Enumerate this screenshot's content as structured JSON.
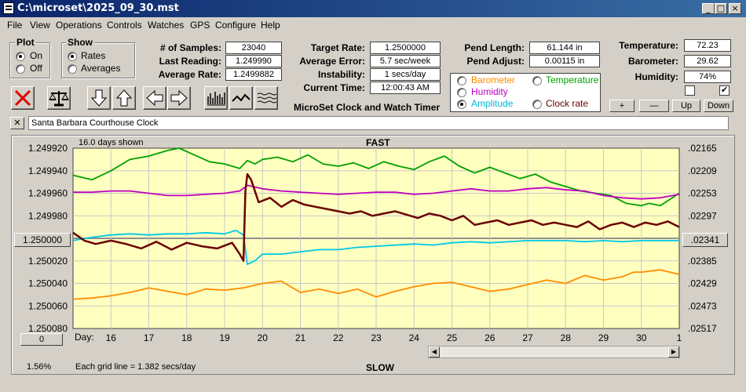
{
  "window": {
    "title": "C:\\microset\\2025_09_30.mst"
  },
  "menu": [
    "File",
    "View",
    "Operations",
    "Controls",
    "Watches",
    "GPS",
    "Configure",
    "Help"
  ],
  "plot_group": {
    "title": "Plot",
    "on": "On",
    "off": "Off",
    "selected": "On"
  },
  "show_group": {
    "title": "Show",
    "rates": "Rates",
    "averages": "Averages",
    "selected": "Rates"
  },
  "stats": {
    "samples_label": "# of Samples:",
    "samples": "23040",
    "last_label": "Last Reading:",
    "last": "1.249990",
    "avg_rate_label": "Average Rate:",
    "avg_rate": "1.2499882",
    "target_label": "Target Rate:",
    "target": "1.2500000",
    "avg_error_label": "Average Error:",
    "avg_error": "5.7 sec/week",
    "instability_label": "Instability:",
    "instability": "1 secs/day",
    "time_label": "Current Time:",
    "time": "12:00:43 AM",
    "pend_length_label": "Pend Length:",
    "pend_length": "61.144 in",
    "pend_adjust_label": "Pend Adjust:",
    "pend_adjust": "0.00115 in",
    "temperature_label": "Temperature:",
    "temperature": "72.23",
    "barometer_label": "Barometer:",
    "barometer": "29.62",
    "humidity_label": "Humidity:",
    "humidity": "74%"
  },
  "product_title": "MicroSet Clock and Watch Timer",
  "sensor_radio": {
    "barometer": "Barometer",
    "temperature": "Temperature",
    "humidity": "Humidity",
    "amplitude": "Amplitude",
    "clock_rate": "Clock rate",
    "selected": "Amplitude"
  },
  "colors": {
    "barometer": "#ff8c00",
    "temperature": "#00a000",
    "humidity": "#c000c0",
    "amplitude": "#00c8e6",
    "rate": "#6b0000",
    "plot_bg": "#ffffc0"
  },
  "adjust_buttons": {
    "plus": "+",
    "minus": "—",
    "up": "Up",
    "down": "Down"
  },
  "checkboxes": {
    "left_checked": false,
    "right_checked": true
  },
  "toolbar_icons": [
    "stop-icon",
    "balance-icon",
    "arrow-down-icon",
    "arrow-up-icon",
    "arrow-left-icon",
    "arrow-right-icon",
    "bar-graph-icon",
    "line-graph-icon",
    "wave-graph-icon"
  ],
  "clock_name": "Santa Barbara Courthouse Clock",
  "close_label": "✕",
  "chart_data": {
    "type": "line",
    "top_label": "FAST",
    "bottom_label": "SLOW",
    "days_shown": "16.0 days shown",
    "grid_note": "Each grid line = 1.382 secs/day",
    "zoom": "1.56%",
    "day_label": "Day:",
    "center_value": "1.250000",
    "offset_button": "0",
    "right_value": ".02341",
    "x_ticks": [
      "16",
      "17",
      "18",
      "19",
      "20",
      "21",
      "22",
      "23",
      "24",
      "25",
      "26",
      "27",
      "28",
      "29",
      "30",
      "1"
    ],
    "x_range": [
      15.0,
      31.0
    ],
    "y_ticks_left": [
      "1.249920",
      "1.249940",
      "1.249960",
      "1.249980",
      "1.250000",
      "1.250020",
      "1.250040",
      "1.250060",
      "1.250080"
    ],
    "y_ticks_right": [
      ".02165",
      ".02209",
      ".02253",
      ".02297",
      ".02341",
      ".02385",
      ".02429",
      ".02473",
      ".02517"
    ],
    "y_range": [
      1.24992,
      1.25008
    ],
    "series": [
      {
        "name": "Temperature",
        "color": "#00a000",
        "x": [
          15.0,
          15.5,
          16.0,
          16.5,
          17.0,
          17.5,
          17.8,
          18.2,
          18.6,
          19.0,
          19.4,
          19.6,
          19.8,
          20.0,
          20.4,
          20.8,
          21.2,
          21.6,
          22.0,
          22.4,
          22.8,
          23.2,
          23.6,
          24.0,
          24.4,
          24.8,
          25.2,
          25.6,
          26.0,
          26.4,
          26.8,
          27.2,
          27.6,
          28.0,
          28.4,
          28.8,
          29.2,
          29.6,
          29.8,
          30.0,
          30.2,
          30.5,
          31.0
        ],
        "y": [
          1.249944,
          1.249948,
          1.24994,
          1.24993,
          1.249927,
          1.249922,
          1.24992,
          1.249926,
          1.249932,
          1.249934,
          1.249938,
          1.249931,
          1.249934,
          1.24993,
          1.249928,
          1.249932,
          1.249926,
          1.249934,
          1.249936,
          1.249933,
          1.249938,
          1.249932,
          1.249936,
          1.249939,
          1.249932,
          1.249927,
          1.249936,
          1.249942,
          1.249937,
          1.249942,
          1.249947,
          1.249943,
          1.24995,
          1.249954,
          1.249958,
          1.24996,
          1.249962,
          1.249969,
          1.24997,
          1.249971,
          1.249969,
          1.249971,
          1.24996
        ]
      },
      {
        "name": "Humidity",
        "color": "#c000c0",
        "x": [
          15.0,
          15.5,
          16.0,
          16.5,
          17.0,
          17.5,
          18.0,
          18.5,
          19.0,
          19.4,
          19.6,
          20.0,
          20.5,
          21.0,
          21.5,
          22.0,
          22.5,
          23.0,
          23.5,
          24.0,
          24.5,
          25.0,
          25.5,
          26.0,
          26.5,
          27.0,
          27.5,
          28.0,
          28.5,
          29.0,
          29.5,
          30.0,
          30.5,
          31.0
        ],
        "y": [
          1.249959,
          1.249959,
          1.249958,
          1.249958,
          1.24996,
          1.249962,
          1.249962,
          1.249961,
          1.24996,
          1.249958,
          1.249953,
          1.249956,
          1.249958,
          1.249959,
          1.24996,
          1.249961,
          1.24996,
          1.249959,
          1.249959,
          1.249961,
          1.24996,
          1.249958,
          1.249956,
          1.249958,
          1.249958,
          1.249956,
          1.249955,
          1.249957,
          1.249958,
          1.249962,
          1.249964,
          1.249965,
          1.249964,
          1.249961
        ]
      },
      {
        "name": "Amplitude",
        "color": "#00c8e6",
        "x": [
          15.0,
          15.5,
          16.0,
          16.5,
          17.0,
          17.5,
          18.0,
          18.5,
          19.0,
          19.3,
          19.5,
          19.6,
          19.8,
          20.0,
          20.5,
          21.0,
          21.5,
          22.0,
          22.5,
          23.0,
          23.5,
          24.0,
          24.5,
          25.0,
          25.5,
          26.0,
          26.5,
          27.0,
          27.5,
          28.0,
          28.5,
          29.0,
          29.5,
          30.0,
          30.5,
          31.0
        ],
        "y": [
          1.250002,
          1.249999,
          1.249997,
          1.249996,
          1.249997,
          1.249996,
          1.249996,
          1.249995,
          1.249996,
          1.249993,
          1.249997,
          1.250023,
          1.25002,
          1.250014,
          1.250014,
          1.250012,
          1.25001,
          1.25001,
          1.250008,
          1.250007,
          1.250006,
          1.250005,
          1.250006,
          1.250004,
          1.250003,
          1.250004,
          1.250003,
          1.250002,
          1.250002,
          1.250002,
          1.250003,
          1.250002,
          1.250003,
          1.250002,
          1.250002,
          1.250002
        ]
      },
      {
        "name": "Barometer",
        "color": "#ff8c00",
        "x": [
          15.0,
          15.5,
          16.0,
          16.5,
          17.0,
          17.5,
          18.0,
          18.5,
          19.0,
          19.5,
          20.0,
          20.5,
          21.0,
          21.5,
          22.0,
          22.5,
          23.0,
          23.5,
          24.0,
          24.5,
          25.0,
          25.5,
          26.0,
          26.5,
          27.0,
          27.5,
          28.0,
          28.5,
          29.0,
          29.5,
          29.8,
          30.0,
          30.5,
          31.0
        ],
        "y": [
          1.250054,
          1.250053,
          1.250051,
          1.250048,
          1.250044,
          1.250047,
          1.25005,
          1.250045,
          1.250046,
          1.250044,
          1.25004,
          1.250038,
          1.250048,
          1.250045,
          1.250049,
          1.250045,
          1.250052,
          1.250047,
          1.250043,
          1.25004,
          1.250039,
          1.250043,
          1.250047,
          1.250045,
          1.250041,
          1.250037,
          1.25004,
          1.250033,
          1.250037,
          1.250034,
          1.25003,
          1.25003,
          1.250028,
          1.250032
        ]
      },
      {
        "name": "Clock rate",
        "color": "#6b0000",
        "x": [
          15.0,
          15.3,
          15.6,
          16.0,
          16.4,
          16.8,
          17.2,
          17.6,
          18.0,
          18.4,
          18.8,
          19.2,
          19.4,
          19.5,
          19.55,
          19.6,
          19.7,
          19.9,
          20.2,
          20.5,
          20.8,
          21.1,
          21.4,
          21.7,
          22.0,
          22.3,
          22.6,
          22.9,
          23.2,
          23.5,
          23.8,
          24.1,
          24.4,
          24.7,
          25.0,
          25.3,
          25.6,
          25.9,
          26.2,
          26.5,
          26.8,
          27.1,
          27.4,
          27.7,
          28.0,
          28.3,
          28.6,
          28.9,
          29.2,
          29.5,
          29.8,
          30.1,
          30.4,
          30.7,
          31.0
        ],
        "y": [
          1.249995,
          1.250002,
          1.250005,
          1.250002,
          1.250005,
          1.250009,
          1.250003,
          1.25001,
          1.250004,
          1.250007,
          1.250009,
          1.250004,
          1.250014,
          1.25002,
          1.249958,
          1.249943,
          1.249948,
          1.249968,
          1.249964,
          1.249972,
          1.249966,
          1.24997,
          1.249972,
          1.249974,
          1.249976,
          1.249978,
          1.249976,
          1.24998,
          1.249978,
          1.249976,
          1.249979,
          1.249982,
          1.249978,
          1.24998,
          1.249984,
          1.24998,
          1.249988,
          1.249986,
          1.249984,
          1.249988,
          1.249986,
          1.249984,
          1.249988,
          1.249986,
          1.249988,
          1.24999,
          1.249985,
          1.249992,
          1.249988,
          1.249986,
          1.24999,
          1.249986,
          1.249988,
          1.249985,
          1.24999
        ]
      }
    ]
  }
}
